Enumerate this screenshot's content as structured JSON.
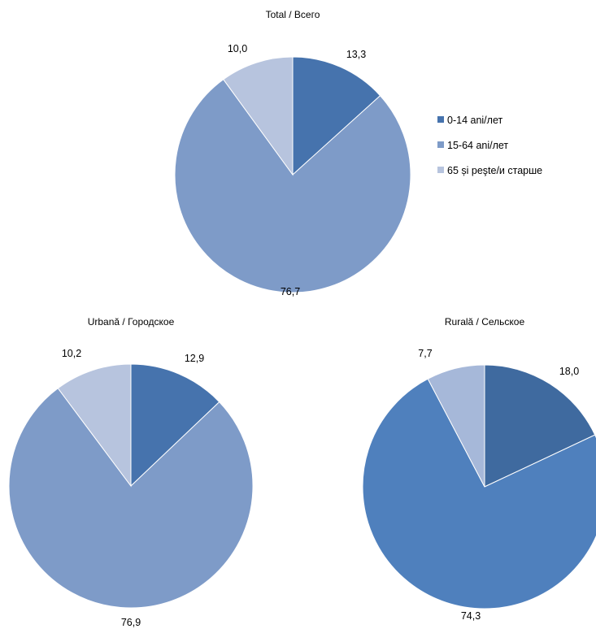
{
  "legend": [
    {
      "label": "0-14 ani/лет",
      "color": "#4673ad"
    },
    {
      "label": "15-64 ani/лет",
      "color": "#7e9bc8"
    },
    {
      "label": "65 și peşte/и старше",
      "color": "#b7c4de"
    }
  ],
  "chart_data": [
    {
      "type": "pie",
      "title": "Total / Всего",
      "categories": [
        "0-14 ani/лет",
        "15-64 ani/лет",
        "65 și peşte/и старше"
      ],
      "values": [
        13.3,
        76.7,
        10.0
      ],
      "labels": [
        "13,3",
        "76,7",
        "10,0"
      ],
      "colors": [
        "#4673ad",
        "#7e9bc8",
        "#b7c4de"
      ],
      "legend": "right"
    },
    {
      "type": "pie",
      "title": "Urbană / Городское",
      "categories": [
        "0-14 ani/лет",
        "15-64 ani/лет",
        "65 și peşte/и старше"
      ],
      "values": [
        12.9,
        76.9,
        10.2
      ],
      "labels": [
        "12,9",
        "76,9",
        "10,2"
      ],
      "colors": [
        "#4673ad",
        "#7e9bc8",
        "#b7c4de"
      ]
    },
    {
      "type": "pie",
      "title": "Rurală / Сельское",
      "categories": [
        "0-14 ani/лет",
        "15-64 ani/лет",
        "65 și peşte/и старше"
      ],
      "values": [
        18.0,
        74.3,
        7.7
      ],
      "labels": [
        "18,0",
        "74,3",
        "7,7"
      ],
      "colors": [
        "#3f6a9f",
        "#4f80bd",
        "#a6b8d9"
      ]
    }
  ]
}
